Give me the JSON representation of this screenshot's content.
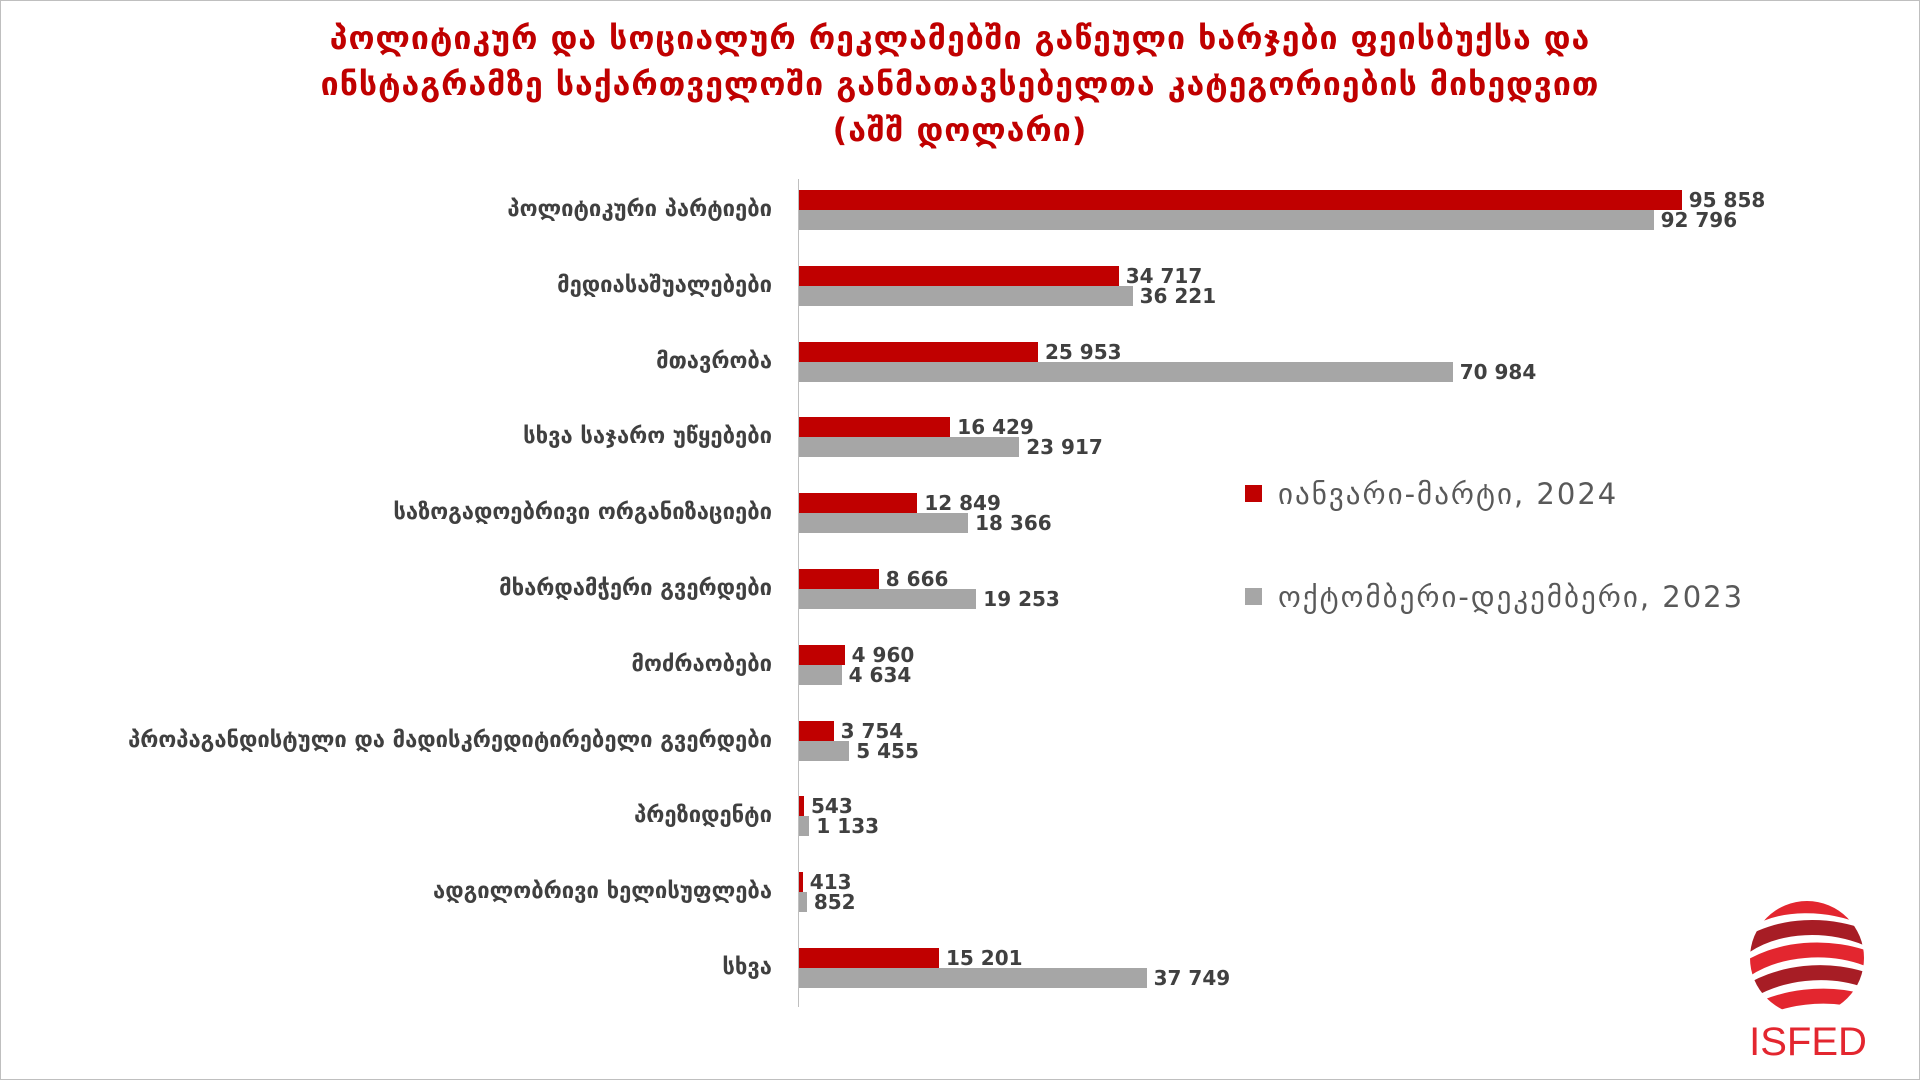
{
  "colors": {
    "accent_red": "#c00000",
    "series_gray": "#a6a6a6",
    "label_text": "#404040",
    "legend_text": "#595959",
    "logo_red": "#e3262f",
    "logo_dark_red": "#a71d25"
  },
  "logo": {
    "text": "ISFED"
  },
  "chart_data": {
    "type": "bar",
    "orientation": "horizontal",
    "title": "პოლიტიკურ და სოციალურ რეკლამებში გაწეული ხარჯები ფეისბუქსა და\nინსტაგრამზე საქართველოში განმათავსებელთა კატეგორიების მიხედვით\n(აშშ დოლარი)",
    "categories": [
      "პოლიტიკური პარტიები",
      "მედიასაშუალებები",
      "მთავრობა",
      "სხვა საჯარო უწყებები",
      "საზოგადოებრივი ორგანიზაციები",
      "მხარდამჭერი გვერდები",
      "მოძრაობები",
      "პროპაგანდისტული და მადისკრედიტირებელი გვერდები",
      "პრეზიდენტი",
      "ადგილობრივი ხელისუფლება",
      "სხვა"
    ],
    "series": [
      {
        "name": "იანვარი-მარტი, 2024",
        "color": "#c00000",
        "values": [
          95858,
          34717,
          25953,
          16429,
          12849,
          8666,
          4960,
          3754,
          543,
          413,
          15201
        ]
      },
      {
        "name": "ოქტომბერი-დეკემბერი, 2023",
        "color": "#a6a6a6",
        "values": [
          92796,
          36221,
          70984,
          23917,
          18366,
          19253,
          4634,
          5455,
          1133,
          852,
          37749
        ]
      }
    ],
    "data_labels": true,
    "value_axis_visible": false,
    "grid": false,
    "legend_position": "right"
  }
}
